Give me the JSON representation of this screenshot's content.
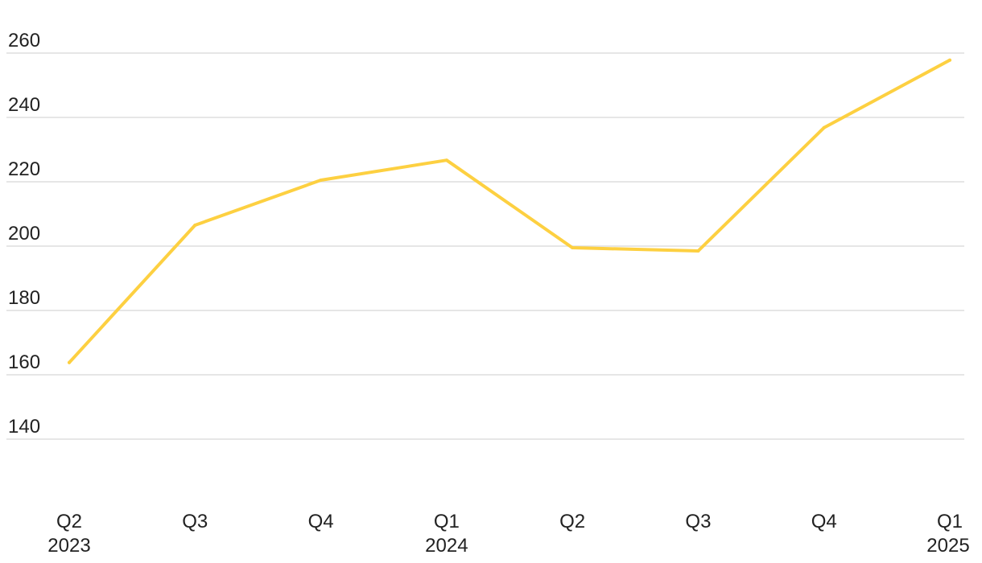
{
  "chart_data": {
    "type": "line",
    "title": "",
    "xlabel": "",
    "ylabel": "",
    "categories": [
      {
        "quarter": "Q2",
        "year": "2023"
      },
      {
        "quarter": "Q3",
        "year": ""
      },
      {
        "quarter": "Q4",
        "year": ""
      },
      {
        "quarter": "Q1",
        "year": "2024"
      },
      {
        "quarter": "Q2",
        "year": ""
      },
      {
        "quarter": "Q3",
        "year": ""
      },
      {
        "quarter": "Q4",
        "year": ""
      },
      {
        "quarter": "Q1",
        "year": "2025"
      }
    ],
    "series": [
      {
        "color": "#fdd041",
        "values": [
          163.8,
          206.5,
          220.5,
          226.7,
          199.5,
          198.5,
          236.8,
          257.8
        ]
      }
    ],
    "yticks": [
      140,
      160,
      180,
      200,
      220,
      240,
      260
    ],
    "ylim": [
      126,
      268
    ],
    "grid": true,
    "legend": "none"
  }
}
